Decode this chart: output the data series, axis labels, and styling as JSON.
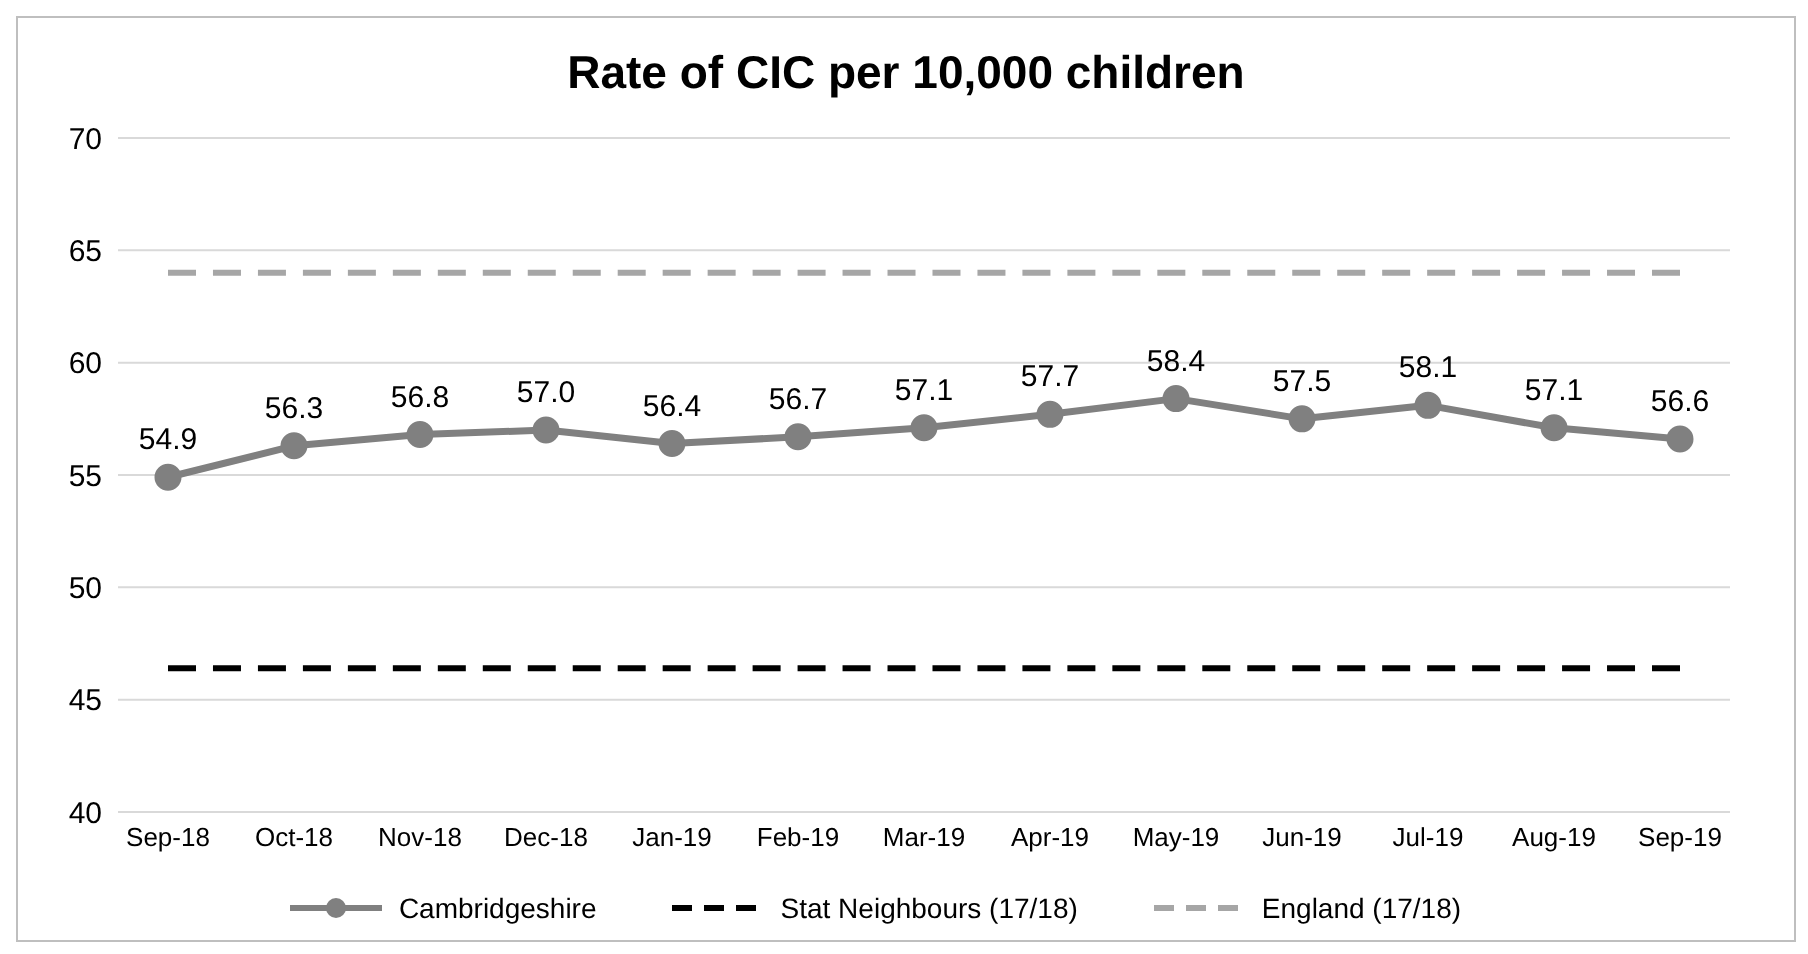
{
  "chart_data": {
    "type": "line",
    "title": "Rate of CIC per 10,000 children",
    "categories": [
      "Sep-18",
      "Oct-18",
      "Nov-18",
      "Dec-18",
      "Jan-19",
      "Feb-19",
      "Mar-19",
      "Apr-19",
      "May-19",
      "Jun-19",
      "Jul-19",
      "Aug-19",
      "Sep-19"
    ],
    "series": [
      {
        "name": "Cambridgeshire",
        "color": "#808080",
        "marker": "circle",
        "line_style": "solid",
        "values": [
          54.9,
          56.3,
          56.8,
          57.0,
          56.4,
          56.7,
          57.1,
          57.7,
          58.4,
          57.5,
          58.1,
          57.1,
          56.6
        ],
        "value_labels": [
          "54.9",
          "56.3",
          "56.8",
          "57.0",
          "56.4",
          "56.7",
          "57.1",
          "57.7",
          "58.4",
          "57.5",
          "58.1",
          "57.1",
          "56.6"
        ]
      },
      {
        "name": "Stat Neighbours (17/18)",
        "color": "#000000",
        "marker": "none",
        "line_style": "dashed",
        "values": [
          46.4,
          46.4,
          46.4,
          46.4,
          46.4,
          46.4,
          46.4,
          46.4,
          46.4,
          46.4,
          46.4,
          46.4,
          46.4
        ]
      },
      {
        "name": "England (17/18)",
        "color": "#a6a6a6",
        "marker": "none",
        "line_style": "dashed",
        "values": [
          64.0,
          64.0,
          64.0,
          64.0,
          64.0,
          64.0,
          64.0,
          64.0,
          64.0,
          64.0,
          64.0,
          64.0,
          64.0
        ]
      }
    ],
    "ylim": [
      40,
      70
    ],
    "yticks": [
      40,
      45,
      50,
      55,
      60,
      65,
      70
    ],
    "grid": "y",
    "legend": "bottom"
  }
}
